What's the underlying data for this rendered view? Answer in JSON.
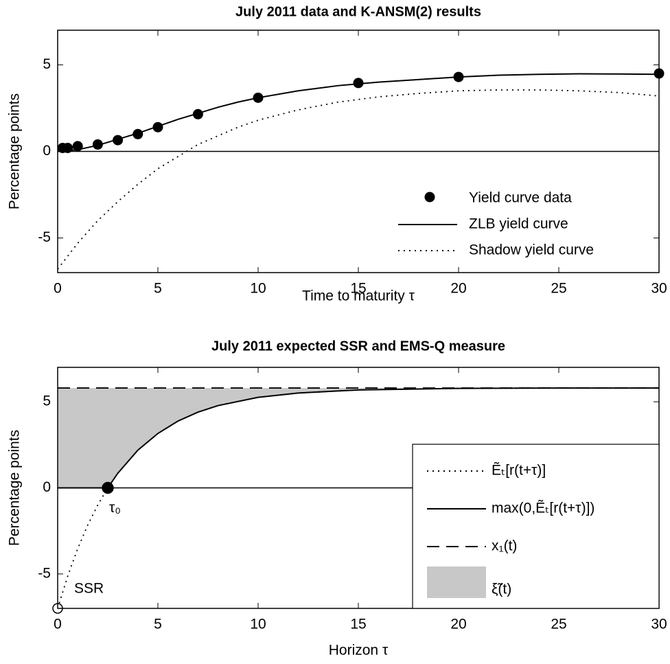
{
  "chart_data": [
    {
      "type": "line",
      "title": "July 2011 data and K-ANSM(2) results",
      "xlabel": "Time to maturity τ",
      "ylabel": "Percentage points",
      "xlim": [
        0,
        30
      ],
      "xticks": [
        0,
        5,
        10,
        15,
        20,
        25,
        30
      ],
      "ylim": [
        -7,
        7
      ],
      "yticks": [
        -5,
        0,
        5
      ],
      "zero_line": true,
      "legend": {
        "loc": "lower right",
        "box": false
      },
      "series": [
        {
          "name": "Yield curve data",
          "color": "#000000",
          "style": "markers",
          "x": [
            0.25,
            0.5,
            1,
            2,
            3,
            4,
            5,
            7,
            10,
            15,
            20,
            30
          ],
          "values": [
            0.2,
            0.2,
            0.3,
            0.4,
            0.65,
            1.0,
            1.4,
            2.15,
            3.1,
            3.95,
            4.3,
            4.5
          ]
        },
        {
          "name": "ZLB yield curve",
          "color": "#000000",
          "style": "solid",
          "x": [
            0,
            1,
            2,
            3,
            4,
            5,
            6,
            7,
            8,
            9,
            10,
            12,
            14,
            16,
            18,
            20,
            22,
            24,
            26,
            28,
            30
          ],
          "values": [
            0.0,
            0.1,
            0.35,
            0.7,
            1.05,
            1.45,
            1.85,
            2.2,
            2.55,
            2.85,
            3.1,
            3.5,
            3.8,
            4.0,
            4.15,
            4.3,
            4.4,
            4.45,
            4.48,
            4.47,
            4.45
          ]
        },
        {
          "name": "Shadow yield curve",
          "color": "#000000",
          "style": "dotted",
          "x": [
            0,
            1,
            2,
            3,
            4,
            5,
            6,
            7,
            8,
            9,
            10,
            12,
            14,
            16,
            18,
            20,
            22,
            24,
            26,
            28,
            30
          ],
          "values": [
            -6.8,
            -5.3,
            -4.0,
            -2.9,
            -1.9,
            -1.0,
            -0.3,
            0.4,
            0.9,
            1.4,
            1.8,
            2.4,
            2.85,
            3.15,
            3.35,
            3.5,
            3.55,
            3.55,
            3.5,
            3.4,
            3.2
          ]
        }
      ]
    },
    {
      "type": "line",
      "title": "July 2011 expected SSR and EMS-Q measure",
      "xlabel": "Horizon τ",
      "ylabel": "Percentage points",
      "xlim": [
        0,
        30
      ],
      "xticks": [
        0,
        5,
        10,
        15,
        20,
        25,
        30
      ],
      "ylim": [
        -7,
        7
      ],
      "yticks": [
        -5,
        0,
        5
      ],
      "zero_line": true,
      "legend": {
        "loc": "lower right",
        "box": true
      },
      "series": [
        {
          "name": "Ẽₜ[r(t+τ)]",
          "color": "#000000",
          "style": "dotted",
          "x": [
            0,
            0.5,
            1,
            1.5,
            2,
            2.5,
            3,
            4,
            5,
            6,
            7,
            8,
            10,
            12,
            15,
            20,
            25,
            30
          ],
          "values": [
            -7,
            -5.13,
            -3.53,
            -2.16,
            -1.0,
            0,
            0.85,
            2.19,
            3.16,
            3.88,
            4.4,
            4.78,
            5.26,
            5.51,
            5.69,
            5.78,
            5.8,
            5.8
          ]
        },
        {
          "name": "max(0,Ẽₜ[r(t+τ)])",
          "color": "#000000",
          "style": "solid",
          "x": [
            0,
            0.5,
            1,
            1.5,
            2,
            2.5,
            3,
            4,
            5,
            6,
            7,
            8,
            10,
            12,
            15,
            20,
            25,
            30
          ],
          "values": [
            0,
            0,
            0,
            0,
            0,
            0,
            0.85,
            2.19,
            3.16,
            3.88,
            4.4,
            4.78,
            5.26,
            5.51,
            5.69,
            5.78,
            5.8,
            5.8
          ]
        },
        {
          "name": "x₁(t)",
          "color": "#000000",
          "style": "dashed",
          "x": [
            0,
            30
          ],
          "values": [
            5.8,
            5.8
          ]
        },
        {
          "name": "ξ̃(t)",
          "color": "#c8c8c8",
          "style": "area",
          "between": [
            1,
            2
          ]
        }
      ],
      "points": [
        {
          "label": "τ₀",
          "x": 2.5,
          "y": 0,
          "filled": true
        },
        {
          "label": "SSR",
          "x": 0,
          "y": -7,
          "filled": false
        }
      ]
    }
  ]
}
